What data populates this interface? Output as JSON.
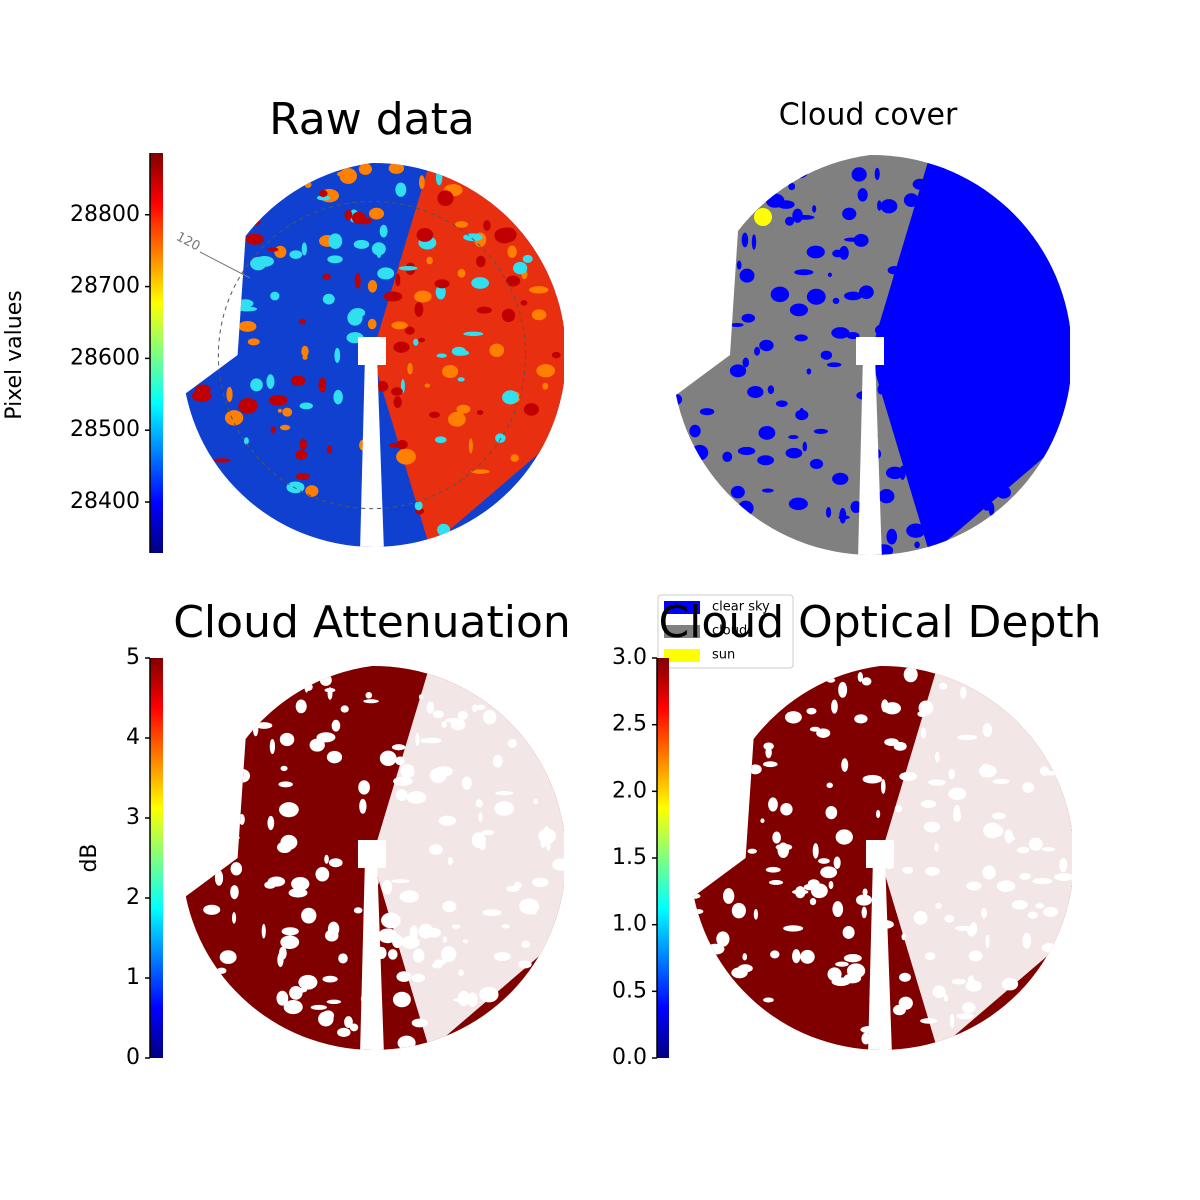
{
  "chart_data": [
    {
      "type": "image",
      "title": "Raw data",
      "colorbar_label": "Pixel values",
      "colormap": "jet",
      "ylim": [
        28329,
        28886
      ],
      "yticks": [
        28400,
        28500,
        28600,
        28700,
        28800
      ],
      "annotations": [
        "120"
      ]
    },
    {
      "type": "image",
      "title": "Cloud cover",
      "legend": [
        {
          "name": "clear sky",
          "color": "#0000ff"
        },
        {
          "name": "cloud",
          "color": "#808080"
        },
        {
          "name": "sun",
          "color": "#ffff00"
        }
      ]
    },
    {
      "type": "image",
      "title": "Cloud Attenuation",
      "colorbar_label": "dB",
      "colormap": "jet",
      "ylim": [
        0,
        5
      ],
      "yticks": [
        0,
        1,
        2,
        3,
        4,
        5
      ]
    },
    {
      "type": "image",
      "title": "Cloud Optical Depth",
      "colormap": "jet",
      "ylim": [
        0,
        3
      ],
      "yticks": [
        {
          "value": 0,
          "label": "0.0"
        },
        {
          "value": 0.5,
          "label": "0.5"
        },
        {
          "value": 1,
          "label": "1.0"
        },
        {
          "value": 1.5,
          "label": "1.5"
        },
        {
          "value": 2,
          "label": "2.0"
        },
        {
          "value": 2.5,
          "label": "2.5"
        },
        {
          "value": 3,
          "label": "3.0"
        }
      ]
    }
  ]
}
